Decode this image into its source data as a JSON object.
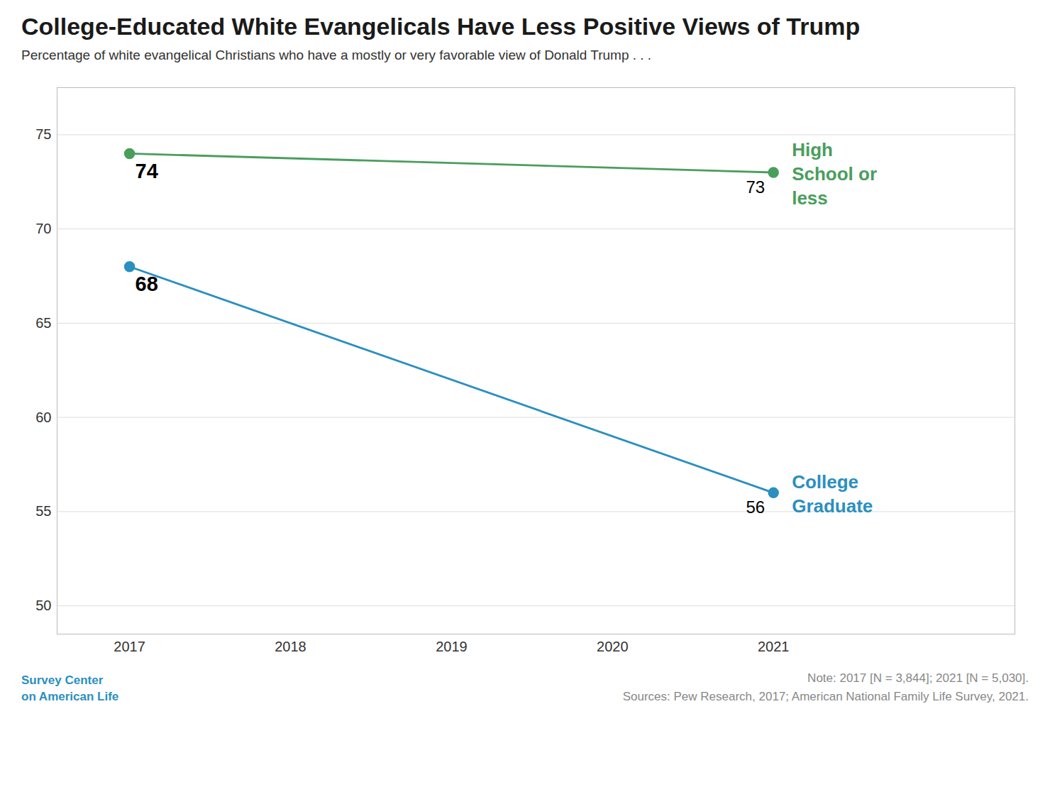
{
  "chart_data": {
    "type": "line",
    "title": "College-Educated White Evangelicals Have Less Positive Views of Trump",
    "subtitle": "Percentage of white evangelical Christians who have a mostly or very favorable view of Donald Trump . . .",
    "x": [
      2017,
      2021
    ],
    "series": [
      {
        "name": "High\nSchool or\nless",
        "color": "#4a9e5c",
        "values": [
          74,
          73
        ]
      },
      {
        "name": "College\nGraduate",
        "color": "#2b8fbf",
        "values": [
          68,
          56
        ]
      }
    ],
    "xlim": [
      2016.55,
      2022.5
    ],
    "xticks": [
      2017,
      2018,
      2019,
      2020,
      2021
    ],
    "ylim": [
      48.5,
      77.5
    ],
    "yticks": [
      50,
      55,
      60,
      65,
      70,
      75
    ],
    "grid": true,
    "marker": "circle",
    "data_labels": true,
    "notes": [
      "Note: 2017 [N = 3,844]; 2021 [N = 5,030].",
      "Sources: Pew Research, 2017; American National Family Life Survey, 2021."
    ],
    "annotations": [
      "Survey Center",
      "on American Life"
    ]
  }
}
